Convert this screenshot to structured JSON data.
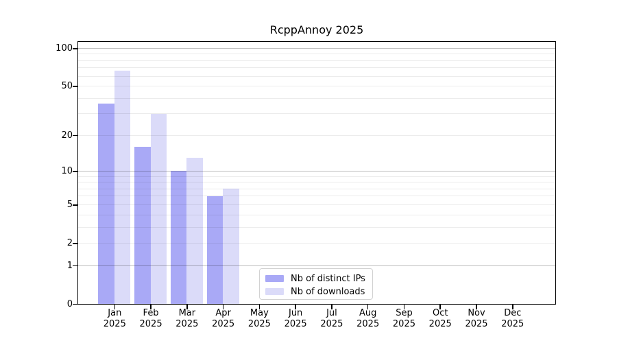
{
  "chart_data": {
    "type": "bar",
    "title": "RcppAnnoy 2025",
    "months": [
      "Jan",
      "Feb",
      "Mar",
      "Apr",
      "May",
      "Jun",
      "Jul",
      "Aug",
      "Sep",
      "Oct",
      "Nov",
      "Dec"
    ],
    "year_label": "2025",
    "series": [
      {
        "name": "Nb of distinct IPs",
        "color": "#a9a9f6",
        "values": [
          36,
          16,
          10,
          6,
          null,
          null,
          null,
          null,
          null,
          null,
          null,
          null
        ]
      },
      {
        "name": "Nb of downloads",
        "color": "#dbdbf9",
        "values": [
          66,
          30,
          13,
          7,
          null,
          null,
          null,
          null,
          null,
          null,
          null,
          null
        ]
      }
    ],
    "yscale": "log10(1+x)",
    "ylim": [
      0,
      113
    ],
    "yticks": [
      0,
      1,
      2,
      5,
      10,
      20,
      50,
      100
    ],
    "major_gridlines": [
      1,
      10,
      100
    ],
    "minor_gridlines": [
      2,
      3,
      4,
      5,
      6,
      7,
      8,
      9,
      20,
      30,
      40,
      50,
      60,
      70,
      80,
      90
    ],
    "legend_position": "lower center",
    "grid": "horizontal only"
  }
}
